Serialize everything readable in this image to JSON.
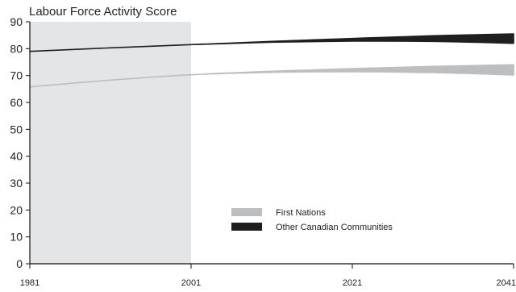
{
  "chart_data": {
    "type": "area",
    "ylabel": "Labour Force Activity  Score",
    "xlabel": "",
    "x_ticks": [
      1981,
      2001,
      2021,
      2041
    ],
    "xlim": [
      1981,
      2041
    ],
    "ylim": [
      0,
      90
    ],
    "y_ticks": [
      0,
      10,
      20,
      30,
      40,
      50,
      60,
      70,
      80,
      90
    ],
    "historical_period": [
      1981,
      2001
    ],
    "historical_shading_color": "#e4e5e7",
    "grid": false,
    "legend_placement": "center-bottom",
    "series": [
      {
        "name": "First Nations",
        "color": "#bdbec0",
        "x": [
          1981,
          1991,
          2001,
          2011,
          2021,
          2031,
          2041
        ],
        "upper": [
          65.8,
          68.3,
          70.3,
          71.6,
          72.6,
          73.4,
          74.0
        ],
        "lower": [
          65.8,
          68.3,
          70.3,
          71.2,
          71.4,
          71.1,
          70.2
        ]
      },
      {
        "name": "Other Canadian Communities",
        "color": "#1f1f1f",
        "x": [
          1981,
          1991,
          2001,
          2011,
          2021,
          2031,
          2041
        ],
        "upper": [
          79.0,
          80.3,
          81.5,
          82.7,
          83.8,
          84.8,
          85.5
        ],
        "lower": [
          79.0,
          80.3,
          81.5,
          82.4,
          82.8,
          82.7,
          82.0
        ]
      }
    ]
  }
}
